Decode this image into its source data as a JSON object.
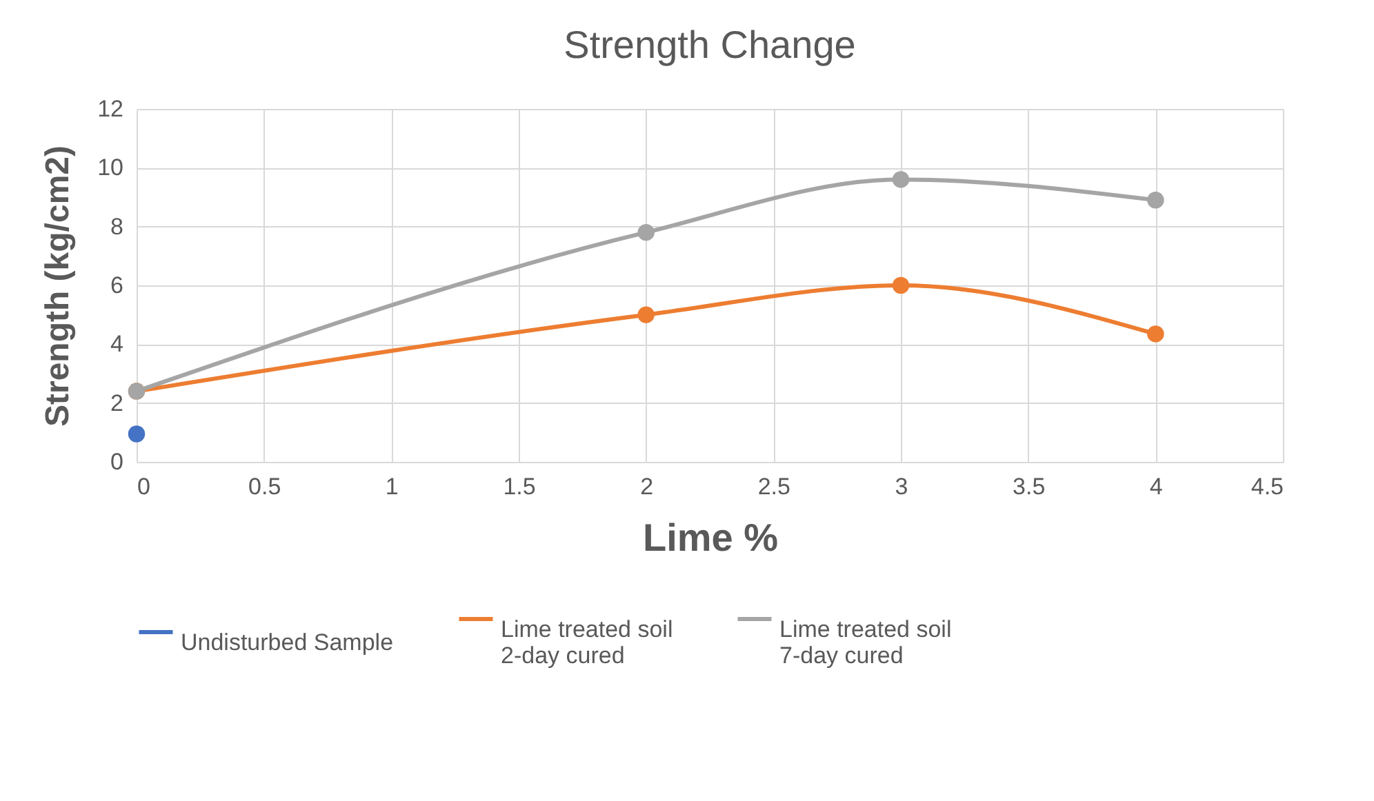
{
  "chart_data": {
    "type": "line",
    "title": "Strength Change",
    "xlabel": "Lime %",
    "ylabel": "Strength (kg/cm2)",
    "xlim": [
      0,
      4.5
    ],
    "xticks": [
      0,
      0.5,
      1,
      1.5,
      2,
      2.5,
      3,
      3.5,
      4,
      4.5
    ],
    "ylim": [
      0,
      12
    ],
    "yticks": [
      0,
      2,
      4,
      6,
      8,
      10,
      12
    ],
    "grid": true,
    "legend": "bottom",
    "marker": "circle",
    "line_style": "solid",
    "series": [
      {
        "name": "Undisturbed Sample",
        "color": "#4472c4",
        "x": [
          0
        ],
        "values": [
          0.95
        ]
      },
      {
        "name": "Lime treated soil\n2-day cured",
        "color": "#ed7d31",
        "x": [
          0,
          2,
          3,
          4
        ],
        "values": [
          2.4,
          5.0,
          6.0,
          4.35
        ]
      },
      {
        "name": "Lime treated soil\n7-day cured",
        "color": "#a5a5a5",
        "x": [
          0,
          2,
          3,
          4
        ],
        "values": [
          2.4,
          7.8,
          9.6,
          8.9
        ]
      }
    ]
  }
}
